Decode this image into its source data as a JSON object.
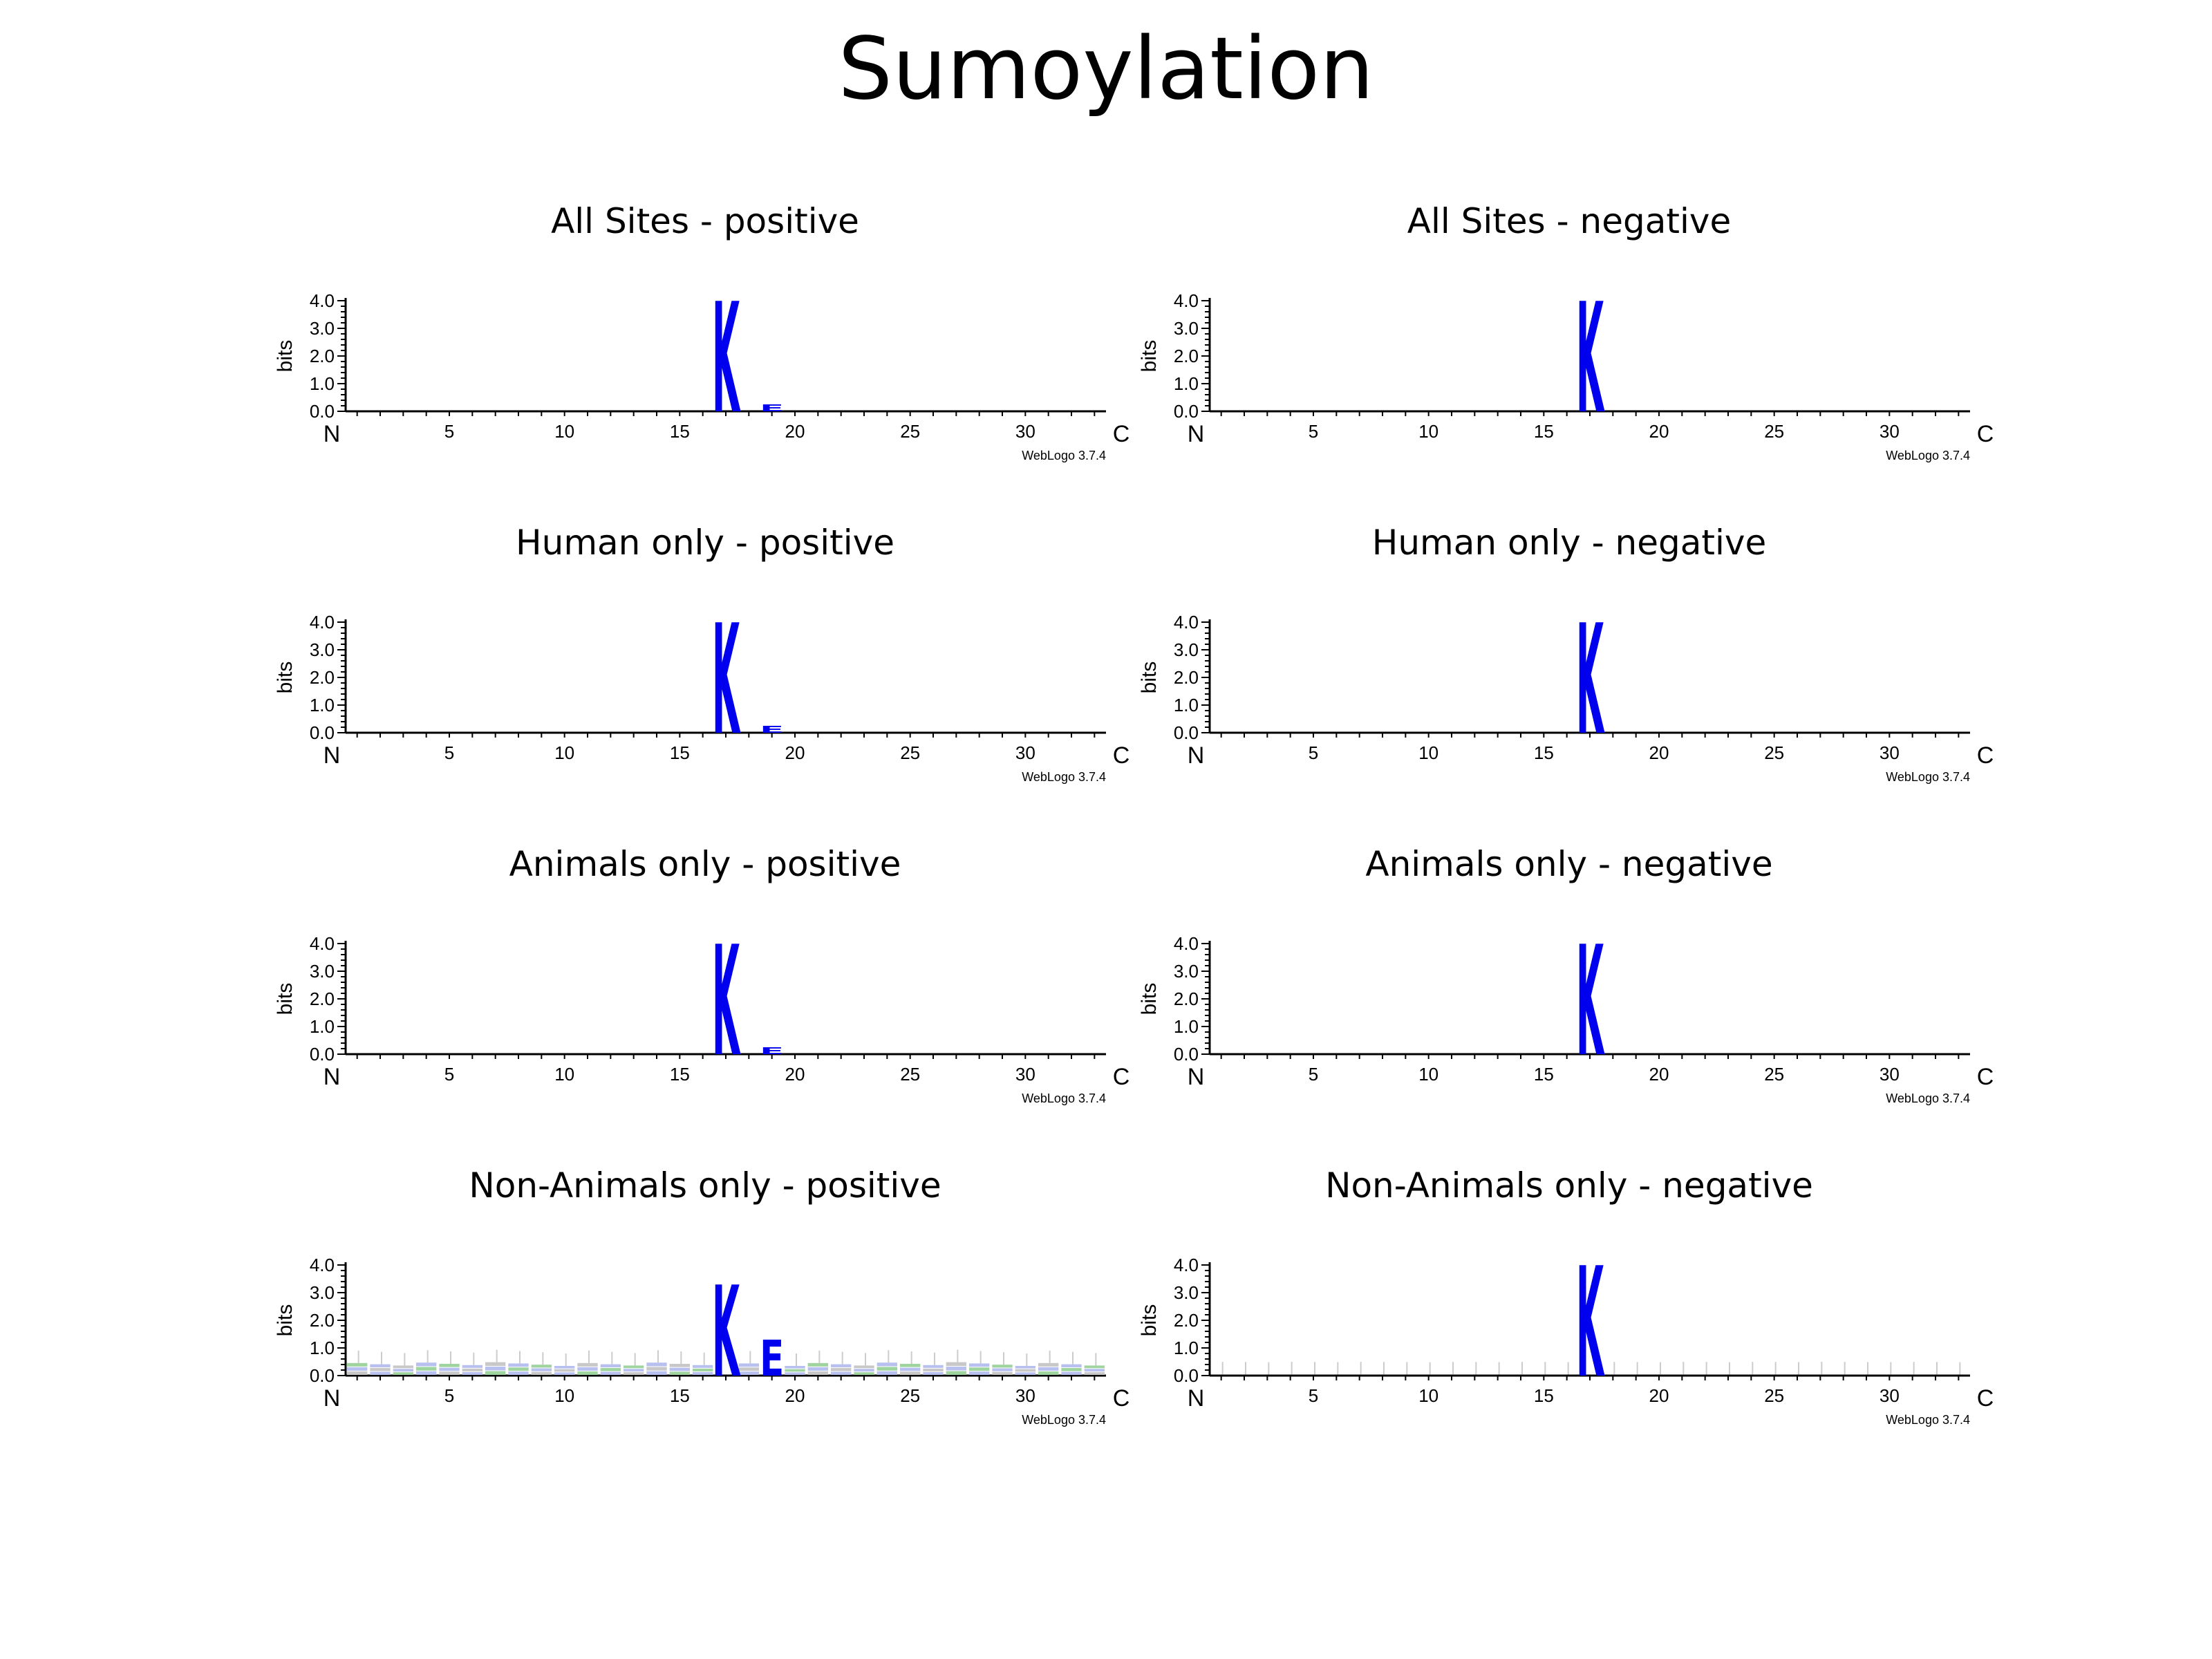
{
  "title": "Sumoylation",
  "chart_data": [
    {
      "type": "sequence_logo",
      "title": "All Sites - positive",
      "ylabel": "bits",
      "ylim": [
        0,
        4.0
      ],
      "yticks": [
        "0.0",
        "1.0",
        "2.0",
        "3.0",
        "4.0"
      ],
      "xticks": [
        "5",
        "10",
        "15",
        "20",
        "25",
        "30"
      ],
      "n_label": "N",
      "c_label": "C",
      "watermark": "WebLogo 3.7.4",
      "positions": 33,
      "letters": [
        {
          "pos": 17,
          "letter": "K",
          "bits": 4.0,
          "color": "#0000ee"
        },
        {
          "pos": 19,
          "letter": "E",
          "bits": 0.25,
          "color": "#0000ee"
        }
      ],
      "background_bits": 0.0
    },
    {
      "type": "sequence_logo",
      "title": "All Sites - negative",
      "ylabel": "bits",
      "ylim": [
        0,
        4.0
      ],
      "yticks": [
        "0.0",
        "1.0",
        "2.0",
        "3.0",
        "4.0"
      ],
      "xticks": [
        "5",
        "10",
        "15",
        "20",
        "25",
        "30"
      ],
      "n_label": "N",
      "c_label": "C",
      "watermark": "WebLogo 3.7.4",
      "positions": 33,
      "letters": [
        {
          "pos": 17,
          "letter": "K",
          "bits": 4.0,
          "color": "#0000ee"
        }
      ],
      "background_bits": 0.0
    },
    {
      "type": "sequence_logo",
      "title": "Human only - positive",
      "ylabel": "bits",
      "ylim": [
        0,
        4.0
      ],
      "yticks": [
        "0.0",
        "1.0",
        "2.0",
        "3.0",
        "4.0"
      ],
      "xticks": [
        "5",
        "10",
        "15",
        "20",
        "25",
        "30"
      ],
      "n_label": "N",
      "c_label": "C",
      "watermark": "WebLogo 3.7.4",
      "positions": 33,
      "letters": [
        {
          "pos": 17,
          "letter": "K",
          "bits": 4.0,
          "color": "#0000ee"
        },
        {
          "pos": 19,
          "letter": "E",
          "bits": 0.25,
          "color": "#0000ee"
        }
      ],
      "background_bits": 0.0
    },
    {
      "type": "sequence_logo",
      "title": "Human only - negative",
      "ylabel": "bits",
      "ylim": [
        0,
        4.0
      ],
      "yticks": [
        "0.0",
        "1.0",
        "2.0",
        "3.0",
        "4.0"
      ],
      "xticks": [
        "5",
        "10",
        "15",
        "20",
        "25",
        "30"
      ],
      "n_label": "N",
      "c_label": "C",
      "watermark": "WebLogo 3.7.4",
      "positions": 33,
      "letters": [
        {
          "pos": 17,
          "letter": "K",
          "bits": 4.0,
          "color": "#0000ee"
        }
      ],
      "background_bits": 0.0
    },
    {
      "type": "sequence_logo",
      "title": "Animals only - positive",
      "ylabel": "bits",
      "ylim": [
        0,
        4.0
      ],
      "yticks": [
        "0.0",
        "1.0",
        "2.0",
        "3.0",
        "4.0"
      ],
      "xticks": [
        "5",
        "10",
        "15",
        "20",
        "25",
        "30"
      ],
      "n_label": "N",
      "c_label": "C",
      "watermark": "WebLogo 3.7.4",
      "positions": 33,
      "letters": [
        {
          "pos": 17,
          "letter": "K",
          "bits": 4.0,
          "color": "#0000ee"
        },
        {
          "pos": 19,
          "letter": "E",
          "bits": 0.25,
          "color": "#0000ee"
        }
      ],
      "background_bits": 0.0
    },
    {
      "type": "sequence_logo",
      "title": "Animals only - negative",
      "ylabel": "bits",
      "ylim": [
        0,
        4.0
      ],
      "yticks": [
        "0.0",
        "1.0",
        "2.0",
        "3.0",
        "4.0"
      ],
      "xticks": [
        "5",
        "10",
        "15",
        "20",
        "25",
        "30"
      ],
      "n_label": "N",
      "c_label": "C",
      "watermark": "WebLogo 3.7.4",
      "positions": 33,
      "letters": [
        {
          "pos": 17,
          "letter": "K",
          "bits": 4.0,
          "color": "#0000ee"
        }
      ],
      "background_bits": 0.0
    },
    {
      "type": "sequence_logo",
      "title": "Non-Animals only - positive",
      "ylabel": "bits",
      "ylim": [
        0,
        4.0
      ],
      "yticks": [
        "0.0",
        "1.0",
        "2.0",
        "3.0",
        "4.0"
      ],
      "xticks": [
        "5",
        "10",
        "15",
        "20",
        "25",
        "30"
      ],
      "n_label": "N",
      "c_label": "C",
      "watermark": "WebLogo 3.7.4",
      "positions": 33,
      "letters": [
        {
          "pos": 17,
          "letter": "K",
          "bits": 3.3,
          "color": "#0000ee"
        },
        {
          "pos": 19,
          "letter": "E",
          "bits": 1.3,
          "color": "#0000ee"
        }
      ],
      "background_bits": 0.5
    },
    {
      "type": "sequence_logo",
      "title": "Non-Animals only - negative",
      "ylabel": "bits",
      "ylim": [
        0,
        4.0
      ],
      "yticks": [
        "0.0",
        "1.0",
        "2.0",
        "3.0",
        "4.0"
      ],
      "xticks": [
        "5",
        "10",
        "15",
        "20",
        "25",
        "30"
      ],
      "n_label": "N",
      "c_label": "C",
      "watermark": "WebLogo 3.7.4",
      "positions": 33,
      "letters": [
        {
          "pos": 17,
          "letter": "K",
          "bits": 4.0,
          "color": "#0000ee"
        }
      ],
      "background_bits": 0.05
    }
  ]
}
